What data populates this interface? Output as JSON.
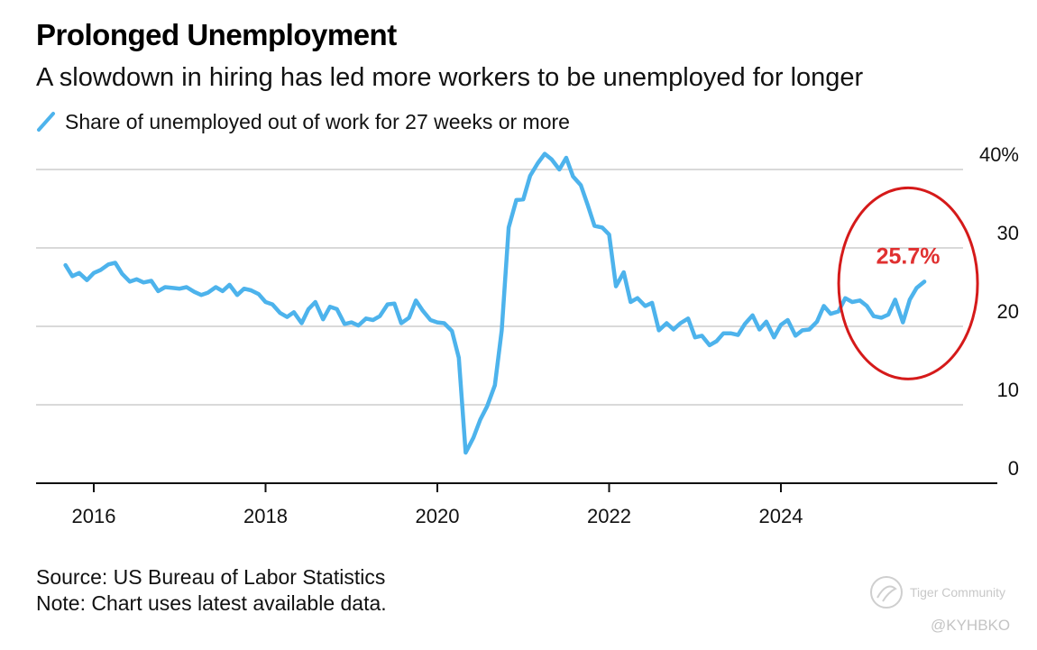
{
  "chart_data": {
    "type": "line",
    "title": "Prolonged Unemployment",
    "subtitle": "A slowdown in hiring has led more workers to be unemployed for longer",
    "ylim": [
      0,
      40
    ],
    "y_ticks": [
      {
        "value": 0,
        "label": "0"
      },
      {
        "value": 10,
        "label": "10"
      },
      {
        "value": 20,
        "label": "20"
      },
      {
        "value": 30,
        "label": "30"
      },
      {
        "value": 40,
        "label": "40%"
      }
    ],
    "x_ticks": [
      {
        "value": 2016,
        "label": "2016"
      },
      {
        "value": 2018,
        "label": "2018"
      },
      {
        "value": 2020,
        "label": "2020"
      },
      {
        "value": 2022,
        "label": "2022"
      },
      {
        "value": 2024,
        "label": "2024"
      }
    ],
    "grid": "horizontal",
    "legend_position": "top-left",
    "series": [
      {
        "name": "Share of unemployed out of work for 27 weeks or more",
        "color": "#4db3ec",
        "points": [
          [
            2015.67,
            27.8
          ],
          [
            2015.75,
            26.4
          ],
          [
            2015.83,
            26.8
          ],
          [
            2015.92,
            25.9
          ],
          [
            2016.0,
            26.8
          ],
          [
            2016.08,
            27.2
          ],
          [
            2016.17,
            27.9
          ],
          [
            2016.25,
            28.1
          ],
          [
            2016.33,
            26.7
          ],
          [
            2016.42,
            25.7
          ],
          [
            2016.5,
            26.0
          ],
          [
            2016.58,
            25.6
          ],
          [
            2016.67,
            25.8
          ],
          [
            2016.75,
            24.5
          ],
          [
            2016.83,
            25.0
          ],
          [
            2016.92,
            24.9
          ],
          [
            2017.0,
            24.8
          ],
          [
            2017.08,
            25.0
          ],
          [
            2017.17,
            24.4
          ],
          [
            2017.25,
            24.0
          ],
          [
            2017.33,
            24.3
          ],
          [
            2017.42,
            25.0
          ],
          [
            2017.5,
            24.5
          ],
          [
            2017.58,
            25.3
          ],
          [
            2017.67,
            24.0
          ],
          [
            2017.75,
            24.8
          ],
          [
            2017.83,
            24.6
          ],
          [
            2017.92,
            24.1
          ],
          [
            2018.0,
            23.1
          ],
          [
            2018.08,
            22.8
          ],
          [
            2018.17,
            21.7
          ],
          [
            2018.25,
            21.2
          ],
          [
            2018.33,
            21.8
          ],
          [
            2018.42,
            20.4
          ],
          [
            2018.5,
            22.2
          ],
          [
            2018.58,
            23.1
          ],
          [
            2018.67,
            20.9
          ],
          [
            2018.75,
            22.5
          ],
          [
            2018.83,
            22.2
          ],
          [
            2018.92,
            20.3
          ],
          [
            2019.0,
            20.5
          ],
          [
            2019.08,
            20.1
          ],
          [
            2019.17,
            21.0
          ],
          [
            2019.25,
            20.8
          ],
          [
            2019.33,
            21.3
          ],
          [
            2019.42,
            22.8
          ],
          [
            2019.5,
            22.9
          ],
          [
            2019.58,
            20.4
          ],
          [
            2019.67,
            21.1
          ],
          [
            2019.75,
            23.3
          ],
          [
            2019.83,
            22.0
          ],
          [
            2019.92,
            20.8
          ],
          [
            2020.0,
            20.5
          ],
          [
            2020.08,
            20.4
          ],
          [
            2020.17,
            19.4
          ],
          [
            2020.25,
            16.0
          ],
          [
            2020.33,
            3.9
          ],
          [
            2020.42,
            5.8
          ],
          [
            2020.5,
            8.1
          ],
          [
            2020.58,
            9.8
          ],
          [
            2020.67,
            12.5
          ],
          [
            2020.75,
            19.5
          ],
          [
            2020.83,
            32.6
          ],
          [
            2020.92,
            36.1
          ],
          [
            2021.0,
            36.2
          ],
          [
            2021.08,
            39.2
          ],
          [
            2021.17,
            40.8
          ],
          [
            2021.25,
            42.0
          ],
          [
            2021.33,
            41.3
          ],
          [
            2021.42,
            40.0
          ],
          [
            2021.5,
            41.5
          ],
          [
            2021.58,
            39.1
          ],
          [
            2021.67,
            38.0
          ],
          [
            2021.75,
            35.5
          ],
          [
            2021.83,
            32.8
          ],
          [
            2021.92,
            32.6
          ],
          [
            2022.0,
            31.7
          ],
          [
            2022.08,
            25.1
          ],
          [
            2022.17,
            26.9
          ],
          [
            2022.25,
            23.1
          ],
          [
            2022.33,
            23.6
          ],
          [
            2022.42,
            22.6
          ],
          [
            2022.5,
            23.0
          ],
          [
            2022.58,
            19.5
          ],
          [
            2022.67,
            20.4
          ],
          [
            2022.75,
            19.6
          ],
          [
            2022.83,
            20.4
          ],
          [
            2022.92,
            21.0
          ],
          [
            2023.0,
            18.6
          ],
          [
            2023.08,
            18.8
          ],
          [
            2023.17,
            17.6
          ],
          [
            2023.25,
            18.1
          ],
          [
            2023.33,
            19.1
          ],
          [
            2023.42,
            19.1
          ],
          [
            2023.5,
            18.9
          ],
          [
            2023.58,
            20.3
          ],
          [
            2023.67,
            21.4
          ],
          [
            2023.75,
            19.6
          ],
          [
            2023.83,
            20.6
          ],
          [
            2023.92,
            18.6
          ],
          [
            2024.0,
            20.2
          ],
          [
            2024.08,
            20.8
          ],
          [
            2024.17,
            18.8
          ],
          [
            2024.25,
            19.5
          ],
          [
            2024.33,
            19.6
          ],
          [
            2024.42,
            20.6
          ],
          [
            2024.5,
            22.6
          ],
          [
            2024.58,
            21.6
          ],
          [
            2024.67,
            21.9
          ],
          [
            2024.75,
            23.6
          ],
          [
            2024.83,
            23.1
          ],
          [
            2024.92,
            23.3
          ],
          [
            2025.0,
            22.6
          ],
          [
            2025.08,
            21.3
          ],
          [
            2025.17,
            21.1
          ],
          [
            2025.25,
            21.5
          ],
          [
            2025.33,
            23.4
          ],
          [
            2025.42,
            20.5
          ],
          [
            2025.5,
            23.4
          ],
          [
            2025.58,
            24.9
          ],
          [
            2025.67,
            25.7
          ]
        ]
      }
    ],
    "annotation": {
      "text": "25.7%",
      "color": "#e03030",
      "circle_color": "#d51a1a"
    }
  },
  "footer": {
    "source": "Source: US Bureau of Labor Statistics",
    "note": "Note: Chart uses latest available data."
  },
  "watermark": {
    "text": "Tiger Community",
    "handle": "@KYHBKO"
  }
}
